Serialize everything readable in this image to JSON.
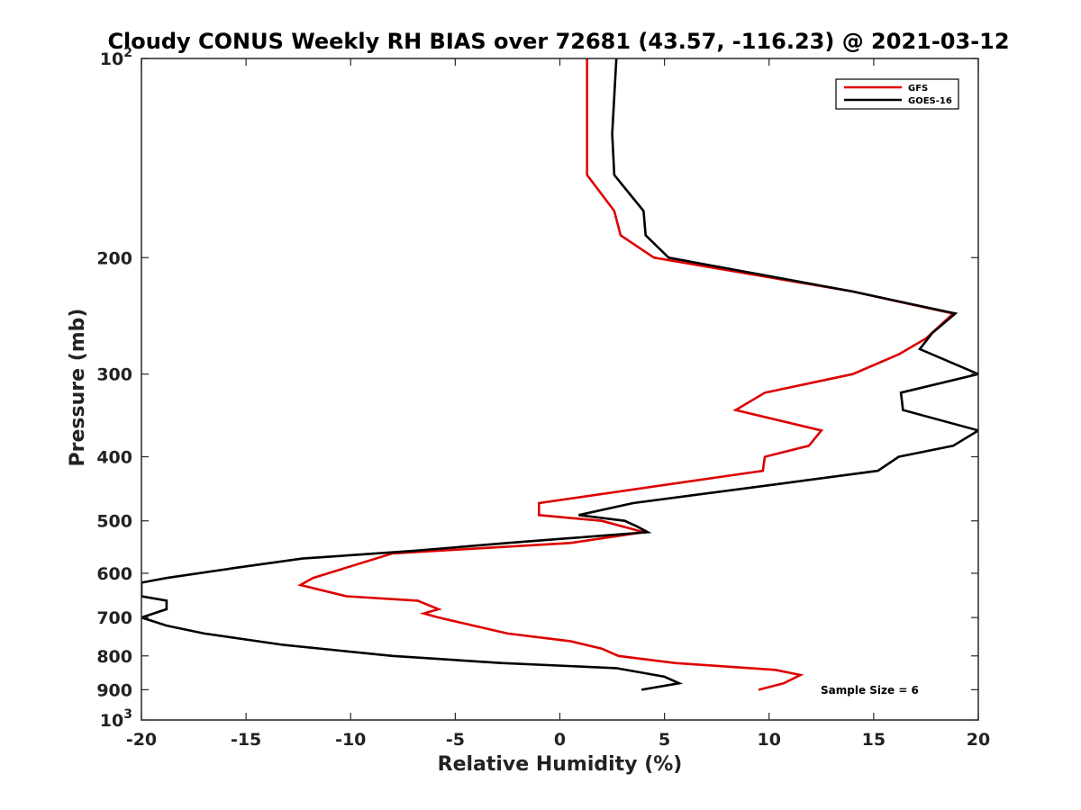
{
  "chart_data": {
    "type": "line",
    "title": "Cloudy CONUS Weekly RH BIAS over 72681 (43.57, -116.23) @ 2021-03-12",
    "xlabel": "Relative Humidity (%)",
    "ylabel": "Pressure (mb)",
    "xlim": [
      -20,
      20
    ],
    "ylim": [
      100,
      1000
    ],
    "y_scale": "log",
    "y_reversed": true,
    "grid": false,
    "legend_position": "top-right",
    "annotation": "Sample Size = 6",
    "x_ticks": [
      {
        "value": -20,
        "label": "-20"
      },
      {
        "value": -15,
        "label": "-15"
      },
      {
        "value": -10,
        "label": "-10"
      },
      {
        "value": -5,
        "label": "-5"
      },
      {
        "value": 0,
        "label": "0"
      },
      {
        "value": 5,
        "label": "5"
      },
      {
        "value": 10,
        "label": "10"
      },
      {
        "value": 15,
        "label": "15"
      },
      {
        "value": 20,
        "label": "20"
      }
    ],
    "y_ticks": [
      {
        "value": 100,
        "base": "10",
        "exp": "2"
      },
      {
        "value": 200,
        "label": "200"
      },
      {
        "value": 300,
        "label": "300"
      },
      {
        "value": 400,
        "label": "400"
      },
      {
        "value": 500,
        "label": "500"
      },
      {
        "value": 600,
        "label": "600"
      },
      {
        "value": 700,
        "label": "700"
      },
      {
        "value": 800,
        "label": "800"
      },
      {
        "value": 900,
        "label": "900"
      },
      {
        "value": 1000,
        "base": "10",
        "exp": "3"
      }
    ],
    "series": [
      {
        "name": "GFS",
        "color": "#dd0000",
        "points": [
          [
            1.3,
            100
          ],
          [
            1.3,
            150
          ],
          [
            2.6,
            170
          ],
          [
            2.9,
            185
          ],
          [
            4.5,
            200
          ],
          [
            14,
            225
          ],
          [
            18.8,
            243
          ],
          [
            17.5,
            265
          ],
          [
            16.2,
            280
          ],
          [
            14,
            300
          ],
          [
            9.8,
            320
          ],
          [
            8.4,
            340
          ],
          [
            12.5,
            365
          ],
          [
            11.9,
            385
          ],
          [
            9.8,
            400
          ],
          [
            9.7,
            420
          ],
          [
            -1,
            470
          ],
          [
            -1,
            490
          ],
          [
            2,
            500
          ],
          [
            4,
            520
          ],
          [
            0.5,
            540
          ],
          [
            -8,
            560
          ],
          [
            -11.8,
            610
          ],
          [
            -12.4,
            625
          ],
          [
            -10.2,
            650
          ],
          [
            -6.8,
            660
          ],
          [
            -5.8,
            680
          ],
          [
            -6.5,
            690
          ],
          [
            -5.8,
            700
          ],
          [
            -2.5,
            740
          ],
          [
            0.5,
            760
          ],
          [
            2,
            780
          ],
          [
            2.8,
            800
          ],
          [
            5.5,
            820
          ],
          [
            10.3,
            840
          ],
          [
            11.5,
            855
          ],
          [
            10.7,
            880
          ],
          [
            9.5,
            900
          ]
        ]
      },
      {
        "name": "GOES-16",
        "color": "#000000",
        "points": [
          [
            2.7,
            100
          ],
          [
            2.5,
            130
          ],
          [
            2.6,
            150
          ],
          [
            4,
            170
          ],
          [
            4.1,
            185
          ],
          [
            5.2,
            200
          ],
          [
            14,
            225
          ],
          [
            18.9,
            243
          ],
          [
            17.8,
            260
          ],
          [
            17.2,
            275
          ],
          [
            20,
            300
          ],
          [
            16.3,
            320
          ],
          [
            16.4,
            340
          ],
          [
            20,
            365
          ],
          [
            18.8,
            385
          ],
          [
            16.2,
            400
          ],
          [
            15.2,
            420
          ],
          [
            10.4,
            440
          ],
          [
            3.5,
            470
          ],
          [
            0.9,
            490
          ],
          [
            3.1,
            500
          ],
          [
            3.7,
            510
          ],
          [
            4.2,
            520
          ],
          [
            -2.5,
            540
          ],
          [
            -7,
            555
          ],
          [
            -12.3,
            570
          ],
          [
            -15.7,
            590
          ],
          [
            -18.8,
            610
          ],
          [
            -20,
            620
          ],
          [
            -20,
            650
          ],
          [
            -18.8,
            660
          ],
          [
            -18.8,
            680
          ],
          [
            -20,
            700
          ],
          [
            -18.8,
            720
          ],
          [
            -17,
            740
          ],
          [
            -13.2,
            770
          ],
          [
            -8,
            800
          ],
          [
            -2.8,
            820
          ],
          [
            2.7,
            835
          ],
          [
            5,
            860
          ],
          [
            5.7,
            880
          ],
          [
            3.9,
            900
          ]
        ]
      }
    ]
  }
}
